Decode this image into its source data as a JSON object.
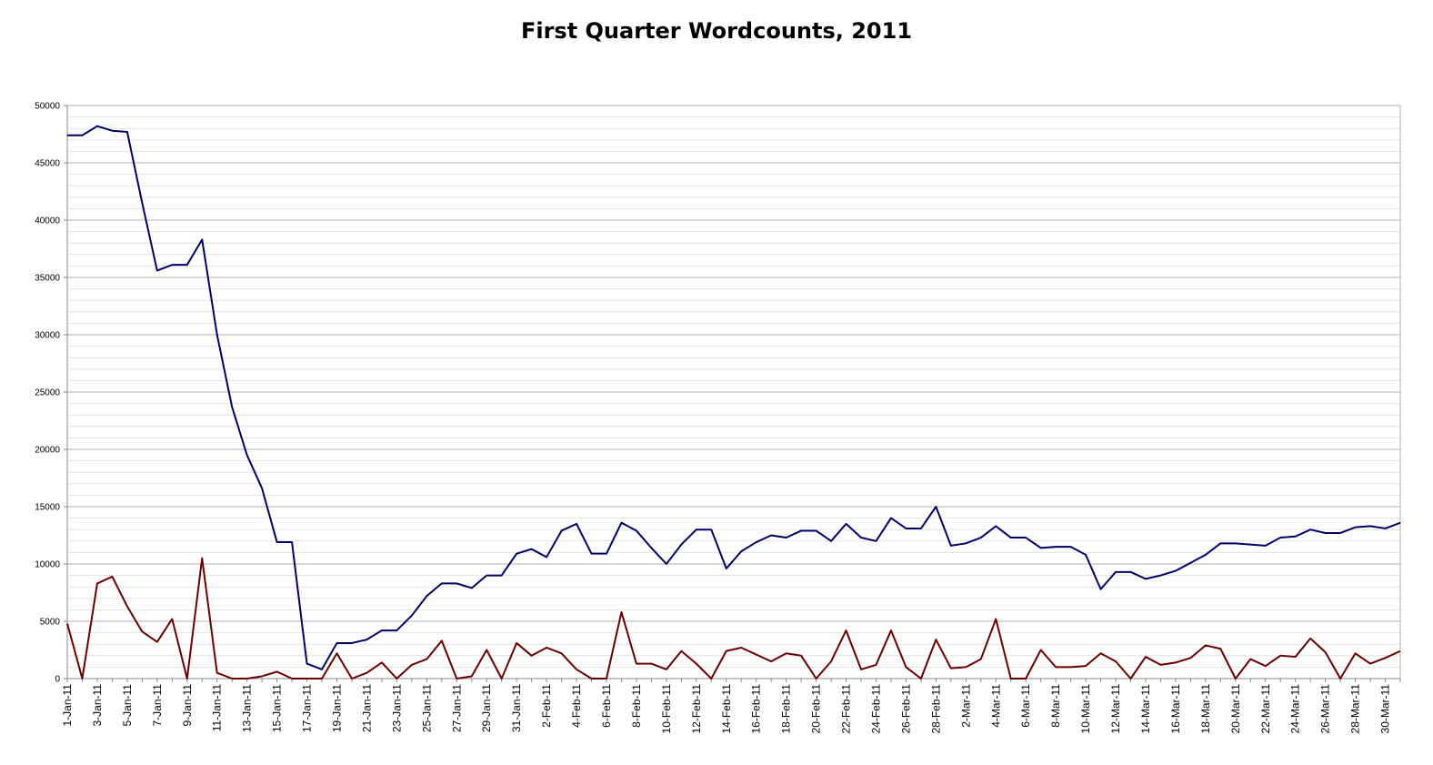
{
  "chart_data": {
    "type": "line",
    "title": "First Quarter Wordcounts, 2011",
    "xlabel": "",
    "ylabel": "",
    "ylim": [
      0,
      50000
    ],
    "y_ticks": [
      "0",
      "5000",
      "10000",
      "15000",
      "20000",
      "25000",
      "30000",
      "35000",
      "40000",
      "45000",
      "50000"
    ],
    "grid": true,
    "legend": "none",
    "x": [
      "1-Jan-11",
      "2-Jan-11",
      "3-Jan-11",
      "4-Jan-11",
      "5-Jan-11",
      "6-Jan-11",
      "7-Jan-11",
      "8-Jan-11",
      "9-Jan-11",
      "10-Jan-11",
      "11-Jan-11",
      "12-Jan-11",
      "13-Jan-11",
      "14-Jan-11",
      "15-Jan-11",
      "16-Jan-11",
      "17-Jan-11",
      "18-Jan-11",
      "19-Jan-11",
      "20-Jan-11",
      "21-Jan-11",
      "22-Jan-11",
      "23-Jan-11",
      "24-Jan-11",
      "25-Jan-11",
      "26-Jan-11",
      "27-Jan-11",
      "28-Jan-11",
      "29-Jan-11",
      "30-Jan-11",
      "31-Jan-11",
      "1-Feb-11",
      "2-Feb-11",
      "3-Feb-11",
      "4-Feb-11",
      "5-Feb-11",
      "6-Feb-11",
      "7-Feb-11",
      "8-Feb-11",
      "9-Feb-11",
      "10-Feb-11",
      "11-Feb-11",
      "12-Feb-11",
      "13-Feb-11",
      "14-Feb-11",
      "15-Feb-11",
      "16-Feb-11",
      "17-Feb-11",
      "18-Feb-11",
      "19-Feb-11",
      "20-Feb-11",
      "21-Feb-11",
      "22-Feb-11",
      "23-Feb-11",
      "24-Feb-11",
      "25-Feb-11",
      "26-Feb-11",
      "27-Feb-11",
      "28-Feb-11",
      "1-Mar-11",
      "2-Mar-11",
      "3-Mar-11",
      "4-Mar-11",
      "5-Mar-11",
      "6-Mar-11",
      "7-Mar-11",
      "8-Mar-11",
      "9-Mar-11",
      "10-Mar-11",
      "11-Mar-11",
      "12-Mar-11",
      "13-Mar-11",
      "14-Mar-11",
      "15-Mar-11",
      "16-Mar-11",
      "17-Mar-11",
      "18-Mar-11",
      "19-Mar-11",
      "20-Mar-11",
      "21-Mar-11",
      "22-Mar-11",
      "23-Mar-11",
      "24-Mar-11",
      "25-Mar-11",
      "26-Mar-11",
      "27-Mar-11",
      "28-Mar-11",
      "29-Mar-11",
      "30-Mar-11",
      "31-Mar-11"
    ],
    "x_tick_labels": [
      "1-Jan-11",
      "3-Jan-11",
      "5-Jan-11",
      "7-Jan-11",
      "9-Jan-11",
      "11-Jan-11",
      "13-Jan-11",
      "15-Jan-11",
      "17-Jan-11",
      "19-Jan-11",
      "21-Jan-11",
      "23-Jan-11",
      "25-Jan-11",
      "27-Jan-11",
      "29-Jan-11",
      "31-Jan-11",
      "2-Feb-11",
      "4-Feb-11",
      "6-Feb-11",
      "8-Feb-11",
      "10-Feb-11",
      "12-Feb-11",
      "14-Feb-11",
      "16-Feb-11",
      "18-Feb-11",
      "20-Feb-11",
      "22-Feb-11",
      "24-Feb-11",
      "26-Feb-11",
      "28-Feb-11",
      "2-Mar-11",
      "4-Mar-11",
      "6-Mar-11",
      "8-Mar-11",
      "10-Mar-11",
      "12-Mar-11",
      "14-Mar-11",
      "16-Mar-11",
      "18-Mar-11",
      "20-Mar-11",
      "22-Mar-11",
      "24-Mar-11",
      "26-Mar-11",
      "28-Mar-11",
      "30-Mar-11"
    ],
    "series": [
      {
        "color": "#000066",
        "values": [
          47400,
          47400,
          48200,
          47800,
          47700,
          41500,
          35600,
          36100,
          36100,
          38300,
          30000,
          23700,
          19500,
          16600,
          11900,
          11900,
          1300,
          800,
          3100,
          3100,
          3400,
          4200,
          4200,
          5500,
          7200,
          8300,
          8300,
          7900,
          9000,
          9000,
          10900,
          11300,
          10600,
          12900,
          13500,
          10900,
          10900,
          13600,
          12900,
          11400,
          10000,
          11700,
          13000,
          13000,
          9600,
          11100,
          11900,
          12500,
          12300,
          12900,
          12900,
          12000,
          13500,
          12300,
          12000,
          14000,
          13100,
          13100,
          15000,
          11600,
          11800,
          12300,
          13300,
          12300,
          12300,
          11400,
          11500,
          11500,
          10800,
          7800,
          9300,
          9300,
          8700,
          9000,
          9400,
          10100,
          10800,
          11800,
          11800,
          11700,
          11600,
          12300,
          12400,
          13000,
          12700,
          12700,
          13200,
          13300,
          13100,
          13600
        ]
      },
      {
        "color": "#6b0000",
        "values": [
          4800,
          0,
          8300,
          8900,
          6300,
          4100,
          3200,
          5200,
          0,
          10500,
          500,
          0,
          0,
          200,
          600,
          0,
          0,
          0,
          2200,
          0,
          500,
          1400,
          0,
          1200,
          1700,
          3300,
          0,
          200,
          2500,
          0,
          3100,
          2000,
          2700,
          2200,
          800,
          0,
          0,
          5800,
          1300,
          1300,
          800,
          2400,
          1300,
          0,
          2400,
          2700,
          2100,
          1500,
          2200,
          2000,
          0,
          1500,
          4200,
          800,
          1200,
          4200,
          1000,
          0,
          3400,
          900,
          1000,
          1700,
          5200,
          0,
          0,
          2500,
          1000,
          1000,
          1100,
          2200,
          1500,
          0,
          1900,
          1200,
          1400,
          1800,
          2900,
          2600,
          0,
          1700,
          1100,
          2000,
          1900,
          3500,
          2300,
          0,
          2200,
          1300,
          1800,
          2400
        ]
      }
    ]
  }
}
